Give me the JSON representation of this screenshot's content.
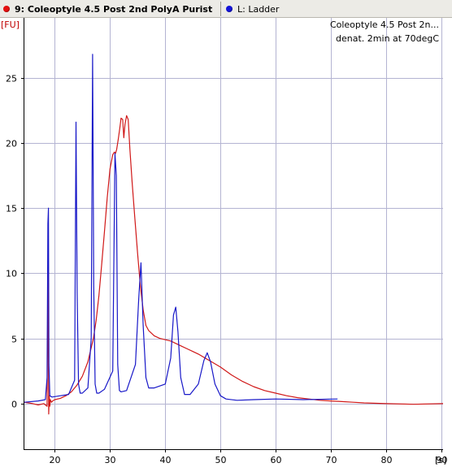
{
  "tabs": [
    {
      "label": "9: Coleoptyle 4.5 Post 2nd PolyA Purist",
      "color": "#e41010",
      "active": true
    },
    {
      "label": "L: Ladder",
      "color": "#1414d8",
      "active": false
    }
  ],
  "chart_data": {
    "type": "line",
    "title": "",
    "annotation_lines": [
      "Coleoptyle 4.5 Post 2n...",
      "denat. 2min at 70degC"
    ],
    "annotation_position": "top-right",
    "xlabel": "[s]",
    "ylabel": "[FU]",
    "xlim": [
      14.5,
      90.3
    ],
    "ylim": [
      -3.5,
      29.6
    ],
    "x_ticks": [
      20,
      30,
      40,
      50,
      60,
      70,
      80,
      90
    ],
    "y_ticks": [
      0,
      5,
      10,
      15,
      20,
      25
    ],
    "grid": true,
    "legend": "none",
    "series": [
      {
        "name": "9: Coleoptyle 4.5 Post 2nd PolyA Purist",
        "color": "#d01818",
        "x": [
          14.5,
          16,
          17,
          18,
          18.6,
          18.8,
          18.9,
          19.0,
          19.1,
          19.2,
          19.4,
          19.6,
          20,
          21,
          22,
          23,
          24,
          25,
          26,
          27,
          27.5,
          28,
          28.5,
          29,
          29.5,
          30,
          30.5,
          30.8,
          31,
          31.2,
          31.5,
          31.8,
          32.0,
          32.3,
          32.5,
          32.7,
          33.0,
          33.3,
          33.6,
          34.0,
          34.5,
          35.0,
          35.5,
          36.0,
          36.5,
          37.0,
          37.5,
          38,
          39,
          40,
          41,
          42,
          43,
          44,
          45,
          46,
          48,
          50,
          52,
          54,
          56,
          58,
          60,
          62,
          64,
          66,
          68,
          70,
          72,
          74,
          76,
          80,
          85,
          90.3
        ],
        "y": [
          0.1,
          0.0,
          -0.1,
          0.0,
          -0.2,
          10.5,
          -0.8,
          0.6,
          -0.2,
          0.3,
          0.1,
          0.2,
          0.3,
          0.4,
          0.6,
          0.9,
          1.4,
          2.1,
          3.2,
          5.0,
          6.4,
          8.3,
          10.7,
          13.2,
          15.8,
          18.0,
          19.1,
          19.3,
          19.2,
          19.5,
          20.3,
          21.2,
          21.9,
          21.8,
          20.4,
          21.4,
          22.1,
          21.8,
          19.5,
          17.0,
          14.2,
          11.5,
          9.0,
          7.2,
          6.0,
          5.6,
          5.4,
          5.2,
          5.0,
          4.9,
          4.8,
          4.6,
          4.4,
          4.2,
          4.0,
          3.8,
          3.3,
          2.8,
          2.2,
          1.7,
          1.3,
          1.0,
          0.8,
          0.6,
          0.45,
          0.35,
          0.25,
          0.2,
          0.15,
          0.1,
          0.05,
          0.0,
          -0.05,
          0.0
        ]
      },
      {
        "name": "L: Ladder",
        "color": "#1818c8",
        "x": [
          14.5,
          17,
          18.3,
          18.6,
          18.75,
          18.85,
          18.95,
          19.1,
          19.5,
          21,
          22.5,
          23.6,
          23.85,
          24.05,
          24.3,
          24.6,
          25,
          26,
          26.6,
          26.85,
          27.05,
          27.3,
          27.6,
          28,
          29,
          30.5,
          30.9,
          31.15,
          31.4,
          31.7,
          32,
          33,
          34.6,
          35.2,
          35.6,
          36.0,
          36.5,
          37,
          38,
          40,
          41.0,
          41.5,
          41.9,
          42.3,
          42.8,
          43.5,
          44.5,
          46,
          47,
          47.6,
          48.2,
          49,
          50,
          51,
          53,
          56,
          60,
          65,
          71.2
        ],
        "y": [
          0.1,
          0.2,
          0.3,
          2.0,
          13.8,
          15.0,
          3.0,
          0.6,
          0.5,
          0.6,
          0.7,
          1.8,
          21.6,
          8.5,
          1.5,
          0.8,
          0.8,
          1.2,
          5.0,
          26.8,
          9.0,
          1.5,
          0.8,
          0.8,
          1.1,
          2.5,
          19.2,
          17.5,
          3.0,
          1.0,
          0.9,
          1.0,
          3.0,
          8.0,
          10.8,
          6.0,
          2.0,
          1.2,
          1.2,
          1.5,
          3.5,
          6.8,
          7.4,
          5.5,
          2.0,
          0.7,
          0.7,
          1.5,
          3.3,
          3.9,
          3.2,
          1.5,
          0.6,
          0.35,
          0.25,
          0.3,
          0.35,
          0.3,
          0.35
        ]
      }
    ]
  }
}
